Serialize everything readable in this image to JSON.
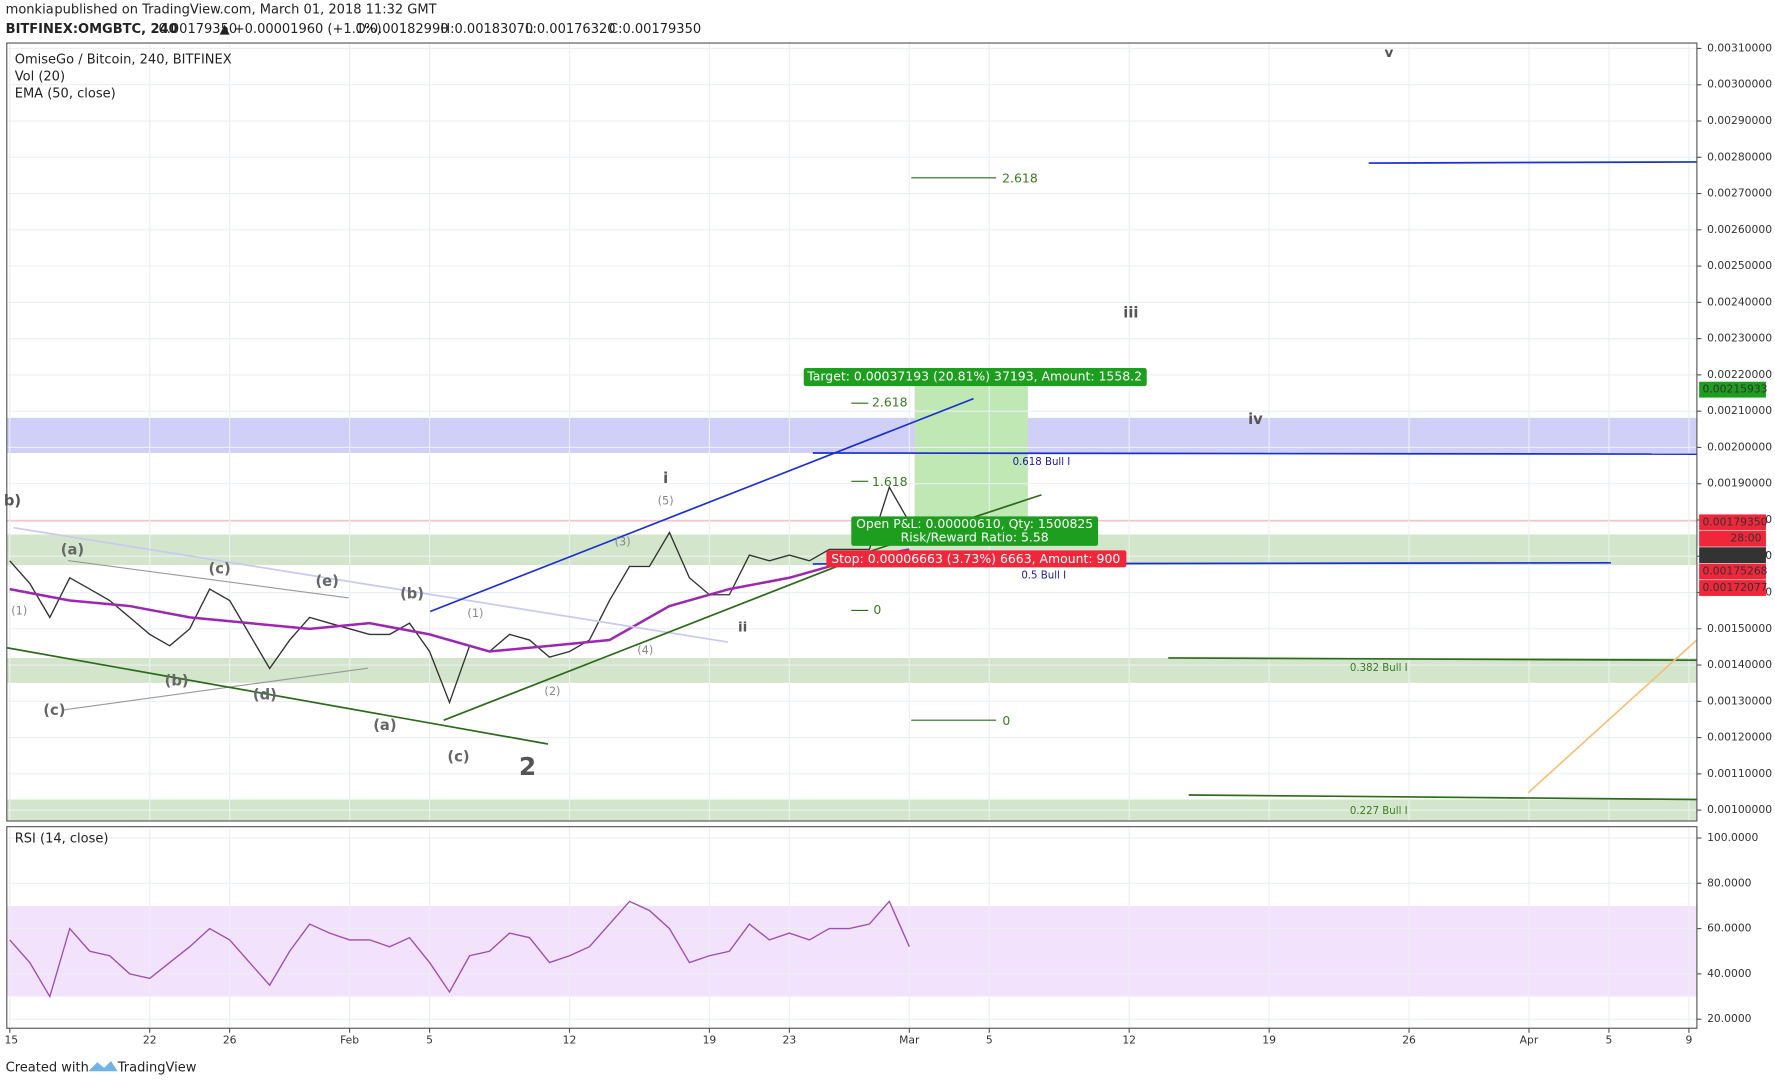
{
  "header": {
    "author": "monkia",
    "published": "published on TradingView.com, March 01, 2018 11:32 GMT",
    "symbol": "BITFINEX:OMGBTC, 240",
    "last": "0.00179350",
    "change": "▲ +0.00001960 (+1.1%)",
    "ohlc": [
      "O:0.00182990",
      "H:0.00183070",
      "L:0.00176320",
      "C:0.00179350"
    ]
  },
  "legend": {
    "pair": "OmiseGo / Bitcoin, 240, BITFINEX",
    "volume": "Vol (20)",
    "ema": "EMA (50, close)",
    "rsi": "RSI (14, close)"
  },
  "chart_data": [
    {
      "type": "line",
      "xlim": [
        -0.15,
        84.4
      ],
      "ylim": [
        0.00097,
        0.003115
      ],
      "xticks": [
        {
          "value": 0,
          "label": "15"
        },
        {
          "value": 7,
          "label": "22"
        },
        {
          "value": 11,
          "label": "26"
        },
        {
          "value": 17,
          "label": "Feb"
        },
        {
          "value": 21,
          "label": "5"
        },
        {
          "value": 28,
          "label": "12"
        },
        {
          "value": 35,
          "label": "19"
        },
        {
          "value": 39,
          "label": "23"
        },
        {
          "value": 45,
          "label": "Mar"
        },
        {
          "value": 49,
          "label": "5"
        },
        {
          "value": 56,
          "label": "12"
        },
        {
          "value": 63,
          "label": "19"
        },
        {
          "value": 70,
          "label": "26"
        },
        {
          "value": 76,
          "label": "Apr"
        },
        {
          "value": 80,
          "label": "5"
        },
        {
          "value": 84,
          "label": "9"
        }
      ],
      "yticks": [
        {
          "value": 0.001,
          "label": "0.00100000"
        },
        {
          "value": 0.0011,
          "label": "0.00110000"
        },
        {
          "value": 0.0012,
          "label": "0.00120000"
        },
        {
          "value": 0.0013,
          "label": "0.00130000"
        },
        {
          "value": 0.0014,
          "label": "0.00140000"
        },
        {
          "value": 0.0015,
          "label": "0.00150000"
        },
        {
          "value": 0.0016,
          "label": "0.00160000"
        },
        {
          "value": 0.0017,
          "label": "0.00170000"
        },
        {
          "value": 0.0018,
          "label": "0.00180000"
        },
        {
          "value": 0.0019,
          "label": "0.00190000"
        },
        {
          "value": 0.002,
          "label": "0.00200000"
        },
        {
          "value": 0.0021,
          "label": "0.00210000"
        },
        {
          "value": 0.0022,
          "label": "0.00220000"
        },
        {
          "value": 0.0023,
          "label": "0.00230000"
        },
        {
          "value": 0.0024,
          "label": "0.00240000"
        },
        {
          "value": 0.0025,
          "label": "0.00250000"
        },
        {
          "value": 0.0026,
          "label": "0.00260000"
        },
        {
          "value": 0.0027,
          "label": "0.00270000"
        },
        {
          "value": 0.0028,
          "label": "0.00280000"
        },
        {
          "value": 0.0029,
          "label": "0.00290000"
        },
        {
          "value": 0.003,
          "label": "0.00300000"
        },
        {
          "value": 0.0031,
          "label": "0.00310000"
        }
      ],
      "grid": true,
      "series": [
        {
          "name": "OmiseGo / Bitcoin",
          "color": "#333333",
          "x": [
            0,
            1,
            2,
            3,
            4,
            5,
            6,
            7,
            8,
            9,
            10,
            11,
            12,
            13,
            14,
            15,
            16,
            17,
            18,
            19,
            20,
            21,
            22,
            23,
            24,
            25,
            26,
            27,
            28,
            29,
            30,
            31,
            32,
            33,
            34,
            35,
            36,
            37,
            38,
            39,
            40,
            41,
            42,
            43,
            44,
            45
          ],
          "values": [
            0.0016875,
            0.001625,
            0.0015313,
            0.0016406,
            0.0016094,
            0.001578,
            0.0015313,
            0.0014844,
            0.0014531,
            0.0015,
            0.0016094,
            0.001578,
            0.0014844,
            0.0013906,
            0.0014688,
            0.0015313,
            0.0015156,
            0.0015,
            0.0014844,
            0.0014844,
            0.0015156,
            0.0014375,
            0.0012969,
            0.0014531,
            0.0014375,
            0.0014844,
            0.0014688,
            0.0014219,
            0.0014375,
            0.0014688,
            0.001578,
            0.0016719,
            0.0016719,
            0.0017656,
            0.0016406,
            0.0015938,
            0.0015938,
            0.0017031,
            0.0016875,
            0.0017031,
            0.0016875,
            0.0017188,
            0.0017188,
            0.0017188,
            0.0018906,
            0.0017935
          ]
        },
        {
          "name": "EMA (50, close)",
          "color": "#9c27b0",
          "x": [
            0,
            3,
            6,
            9,
            12,
            15,
            18,
            21,
            24,
            27,
            30,
            33,
            36,
            39,
            42,
            45
          ],
          "values": [
            0.0016094,
            0.001578,
            0.0015625,
            0.0015313,
            0.0015156,
            0.0015,
            0.0015156,
            0.0014844,
            0.0014375,
            0.0014531,
            0.0014688,
            0.0015625,
            0.0016094,
            0.0016406,
            0.0016875,
            0.0017188
          ]
        }
      ],
      "price_tags": [
        {
          "value": 0.00215933,
          "label": "0.00215933",
          "color": "#1e9e1e"
        },
        {
          "value": 0.0017935,
          "label": "0.00179350",
          "color": "#f0263a",
          "sub": "28:00"
        },
        {
          "value": 0.0017874,
          "label": "0.00178740",
          "color": "#333333"
        },
        {
          "value": 0.00175268,
          "label": "0.00175268",
          "color": "#f0263a"
        },
        {
          "value": 0.00172077,
          "label": "0.00172077",
          "color": "#f0263a"
        }
      ]
    },
    {
      "type": "line",
      "xlim": [
        -0.15,
        84.4
      ],
      "ylim": [
        16,
        105
      ],
      "yticks": [
        {
          "value": 20,
          "label": "20.0000"
        },
        {
          "value": 40,
          "label": "40.0000"
        },
        {
          "value": 60,
          "label": "60.0000"
        },
        {
          "value": 80,
          "label": "80.0000"
        },
        {
          "value": 100,
          "label": "100.0000"
        }
      ],
      "band": [
        30,
        70
      ],
      "series": [
        {
          "name": "RSI (14, close)",
          "color": "#9c4fb0",
          "x": [
            0,
            1,
            2,
            3,
            4,
            5,
            6,
            7,
            8,
            9,
            10,
            11,
            12,
            13,
            14,
            15,
            16,
            17,
            18,
            19,
            20,
            21,
            22,
            23,
            24,
            25,
            26,
            27,
            28,
            29,
            30,
            31,
            32,
            33,
            34,
            35,
            36,
            37,
            38,
            39,
            40,
            41,
            42,
            43,
            44,
            45
          ],
          "values": [
            55,
            45,
            30,
            60,
            50,
            48,
            40,
            38,
            45,
            52,
            60,
            55,
            45,
            35,
            50,
            62,
            58,
            55,
            55,
            52,
            56,
            45,
            32,
            48,
            50,
            58,
            56,
            45,
            48,
            52,
            62,
            72,
            68,
            60,
            45,
            48,
            50,
            62,
            55,
            58,
            55,
            60,
            60,
            62,
            72,
            52
          ]
        }
      ]
    }
  ],
  "annotations": [
    "v",
    "2.618",
    "iii",
    "2.618",
    "iv",
    "0.618 Bull I",
    "i",
    "1.618",
    "b)",
    "(5)",
    "(a)",
    "(c)",
    "(e)",
    "(b)",
    "0.5 Bull I",
    "0",
    "ii",
    "(1)",
    "(b)",
    "(d)",
    "(c)",
    "0.382 Bull I",
    "(a)",
    "0",
    "(c)",
    "2",
    "0.227 Bull I",
    "(1)",
    "(2)",
    "(3)",
    "(4)"
  ],
  "trade": {
    "target": "Target: 0.00037193 (20.81%) 37193, Amount: 1558.2",
    "pnl": "Open P&L: 0.00000610, Qty: 1500825",
    "ratio": "Risk/Reward Ratio: 5.58",
    "stop": "Stop: 0.00006663 (3.73%) 6663, Amount: 900"
  },
  "footer": {
    "created": "Created with",
    "brand": "TradingView"
  }
}
